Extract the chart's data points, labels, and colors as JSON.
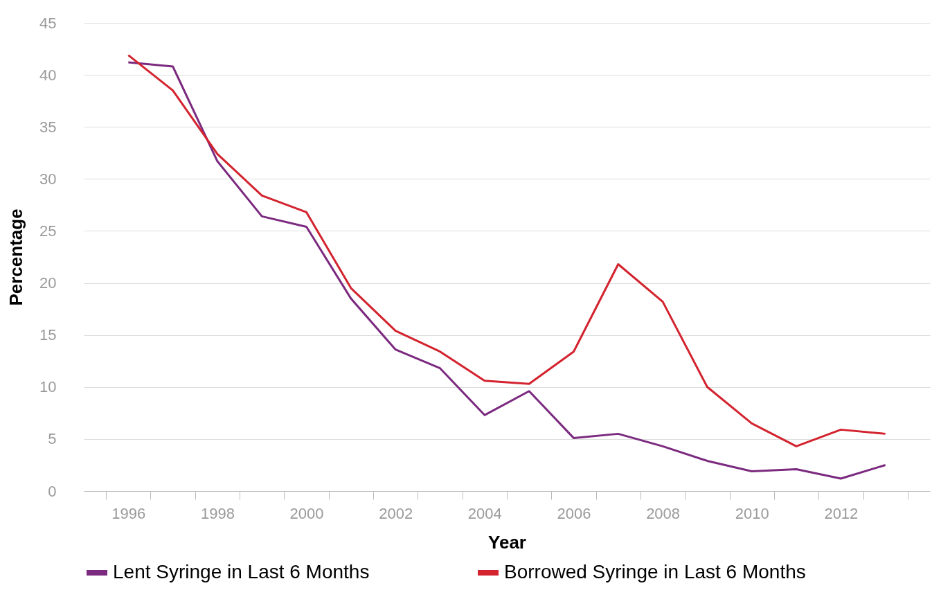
{
  "chart_data": {
    "type": "line",
    "xlabel": "Year",
    "ylabel": "Percentage",
    "categories": [
      "1996",
      null,
      "1998",
      null,
      "2000",
      null,
      "2002",
      null,
      "2004",
      null,
      "2006",
      null,
      "2008",
      null,
      "2010",
      null,
      "2012",
      null
    ],
    "series": [
      {
        "name": "Lent Syringe in Last 6 Months",
        "color": "#7b2a7f",
        "values": [
          41.2,
          40.8,
          31.7,
          26.4,
          25.4,
          18.5,
          13.6,
          11.8,
          7.3,
          9.6,
          5.1,
          5.5,
          4.3,
          2.9,
          1.9,
          2.1,
          1.2,
          2.5
        ]
      },
      {
        "name": "Borrowed Syringe in Last 6 Months",
        "color": "#d3232e",
        "values": [
          41.9,
          38.5,
          32.4,
          28.4,
          26.8,
          19.5,
          15.4,
          13.4,
          10.6,
          10.3,
          13.4,
          21.8,
          18.2,
          10.0,
          6.5,
          4.3,
          5.9,
          5.5
        ]
      }
    ],
    "ylim": [
      0,
      45
    ],
    "yticks": [
      0,
      5,
      10,
      15,
      20,
      25,
      30,
      35,
      40,
      45
    ],
    "grid": "y",
    "legend": "bottom",
    "marker": "none",
    "line_style": "solid"
  }
}
